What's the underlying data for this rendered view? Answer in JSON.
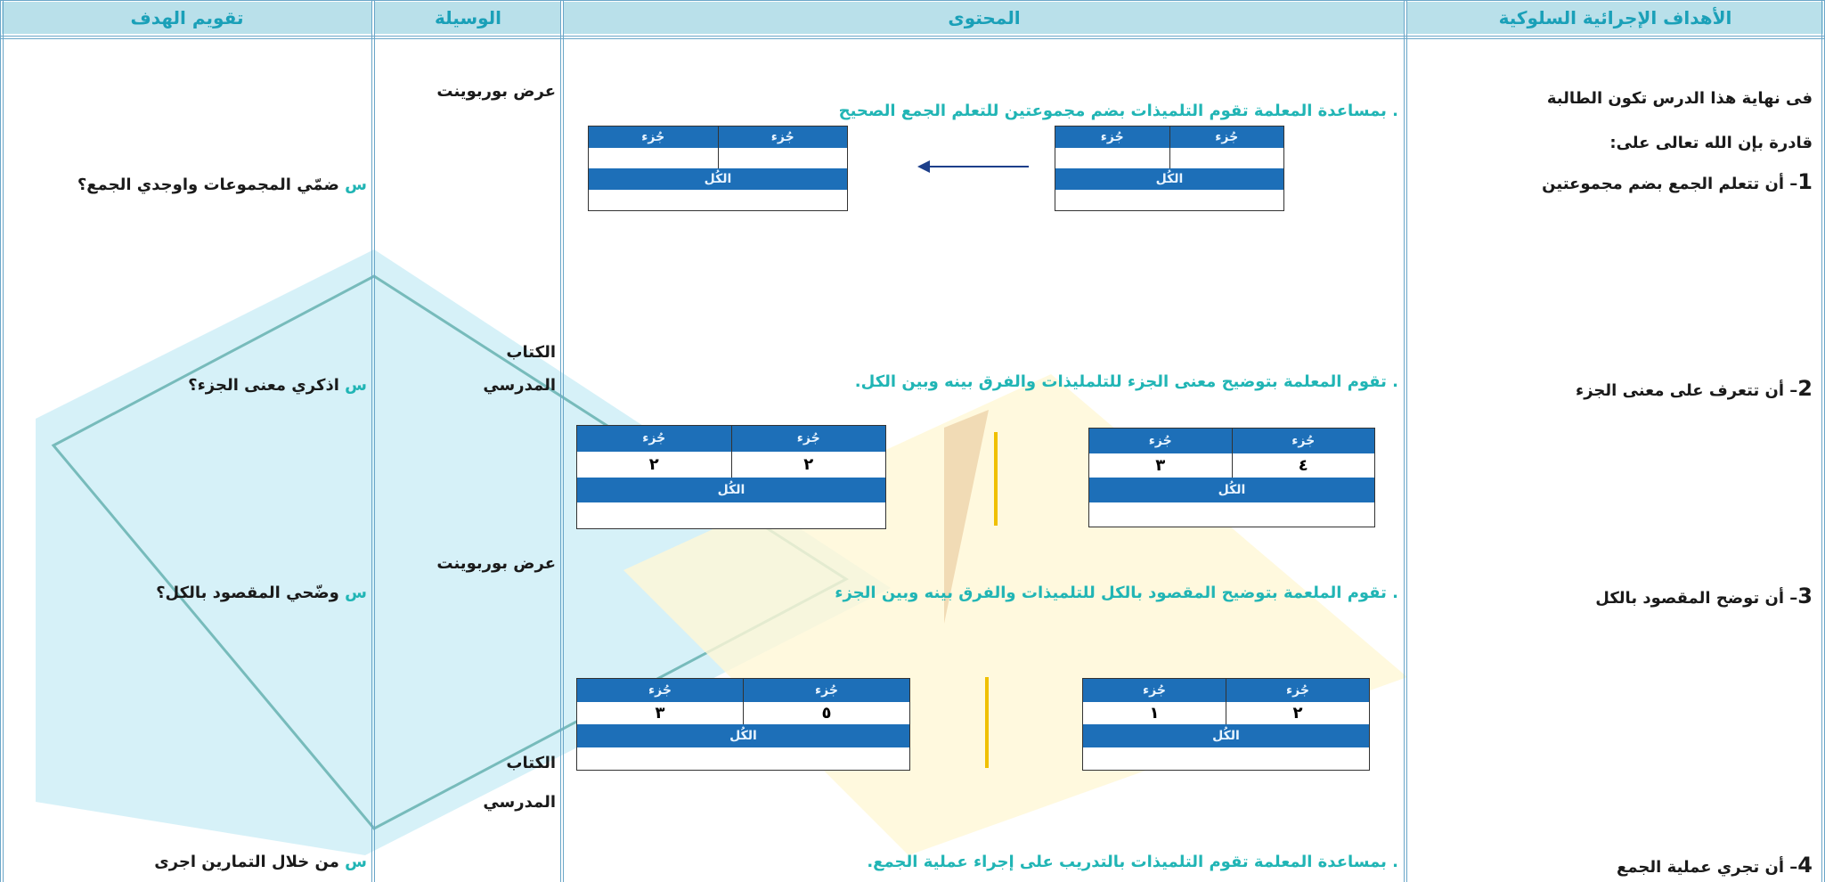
{
  "header": [
    "الأهداف الإجرائية السلوكية",
    "المحتوى",
    "الوسيلة",
    "تقويم الهدف"
  ],
  "objectives": {
    "intro": [
      "فى نهاية هذا الدرس تكون الطالبة",
      "قادرة بإن الله تعالى على:"
    ],
    "items": [
      {
        "number": "1",
        "text": "– أن تتعلم الجمع بضم مجموعتين"
      },
      {
        "number": "2",
        "text": "– أن  تتعرف على معنى الجزء"
      },
      {
        "number": "3",
        "text": "– أن توضح المقصود بالكل"
      },
      {
        "number": "4",
        "text": "– أن تجري عملية الجمع"
      }
    ]
  },
  "content": [
    ". بمساعدة المعلمة تقوم التلميذات بضم مجموعتين للتعلم الجمع الصحيح",
    ". تقوم المعلمة بتوضيح معنى الجزء للتلمليذات والفرق بينه وبين الكل.",
    ". تقوم الملعمة بتوضيح المقصود بالكل للتلميذات والفرق بينه وبين الجزء",
    ". بمساعدة المعلمة تقوم التلميذات بالتدريب على إجراء عملية الجمع."
  ],
  "diagrams": [
    {
      "tables": [
        {
          "parts": [
            "جُزء",
            "جُزء"
          ],
          "whole": "الكُل"
        },
        {
          "parts": [
            "جُزء",
            "جُزء"
          ],
          "whole": "الكُل"
        }
      ]
    },
    {
      "tables": [
        {
          "parts": [
            "جُزء",
            "جُزء"
          ],
          "values": [
            "٤",
            "٣"
          ],
          "whole": "الكُل"
        },
        {
          "parts": [
            "جُزء",
            "جُزء"
          ],
          "values": [
            "٢",
            "٢"
          ],
          "whole": "الكُل"
        }
      ]
    },
    {
      "tables": [
        {
          "parts": [
            "جُزء",
            "جُزء"
          ],
          "values": [
            "٢",
            "١"
          ],
          "whole": "الكُل"
        },
        {
          "parts": [
            "جُزء",
            "جُزء"
          ],
          "values": [
            "٥",
            "٣"
          ],
          "whole": "الكُل"
        }
      ]
    }
  ],
  "tools": [
    "عرض بوربوينت",
    "الكتاب",
    "المدرسي",
    "عرض بوربوينت",
    "الكتاب",
    "المدرسي"
  ],
  "evaluation": [
    {
      "marker": "س",
      "text": "ضمّي المجموعات واوجدي الجمع؟"
    },
    {
      "marker": "س",
      "text": "اذكري معنى الجزء؟"
    },
    {
      "marker": "س",
      "text": "وضّحي المقصود بالكل؟"
    },
    {
      "marker": "س",
      "text": "من خلال التمارين  اجرى"
    }
  ]
}
